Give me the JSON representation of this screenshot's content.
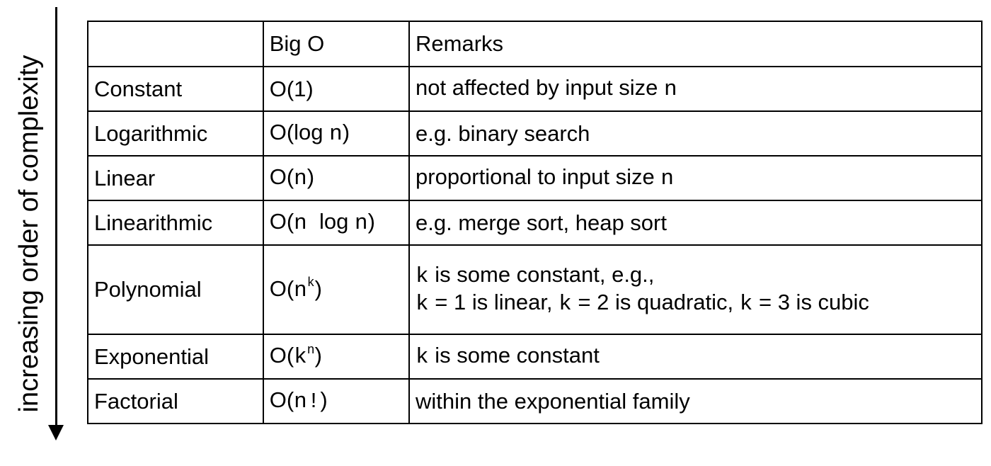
{
  "side_label": "increasing order of complexity",
  "table": {
    "headers": [
      "",
      "Big O",
      "Remarks"
    ],
    "rows": [
      {
        "name": "Constant",
        "big_o": {
          "prefix": "O(1)"
        },
        "remarks": [
          "not affected by input size",
          "n"
        ]
      },
      {
        "name": "Logarithmic",
        "big_o": {
          "prefix": "O(log",
          "var": "n",
          "suffix": ")"
        },
        "remarks": [
          "e.g. binary search"
        ]
      },
      {
        "name": "Linear",
        "big_o": {
          "prefix": "O(",
          "var": "n",
          "suffix": ")"
        },
        "remarks": [
          "proportional to input size",
          "n"
        ]
      },
      {
        "name": "Linearithmic",
        "big_o": {
          "prefix": "O(",
          "var1": "n",
          "mid": "log",
          "var2": "n",
          "suffix": ")"
        },
        "remarks": [
          "e.g. merge sort, heap sort"
        ]
      },
      {
        "name": "Polynomial",
        "big_o": {
          "prefix": "O(",
          "base": "n",
          "exp": "k",
          "suffix": ")"
        },
        "remarks": {
          "line1": {
            "var": "k",
            "text": "is some constant, e.g.,"
          },
          "line2": {
            "v1": "k",
            "t1": "= 1 is linear,",
            "v2": "k",
            "t2": "= 2 is quadratic,",
            "v3": "k",
            "t3": "= 3 is cubic"
          }
        }
      },
      {
        "name": "Exponential",
        "big_o": {
          "prefix": "O(",
          "base": "k",
          "exp": "n",
          "suffix": ")"
        },
        "remarks": {
          "var": "k",
          "text": "is some constant"
        }
      },
      {
        "name": "Factorial",
        "big_o": {
          "prefix": "O(",
          "var": "n!",
          "suffix": ")"
        },
        "remarks": [
          "within the exponential family"
        ]
      }
    ]
  }
}
